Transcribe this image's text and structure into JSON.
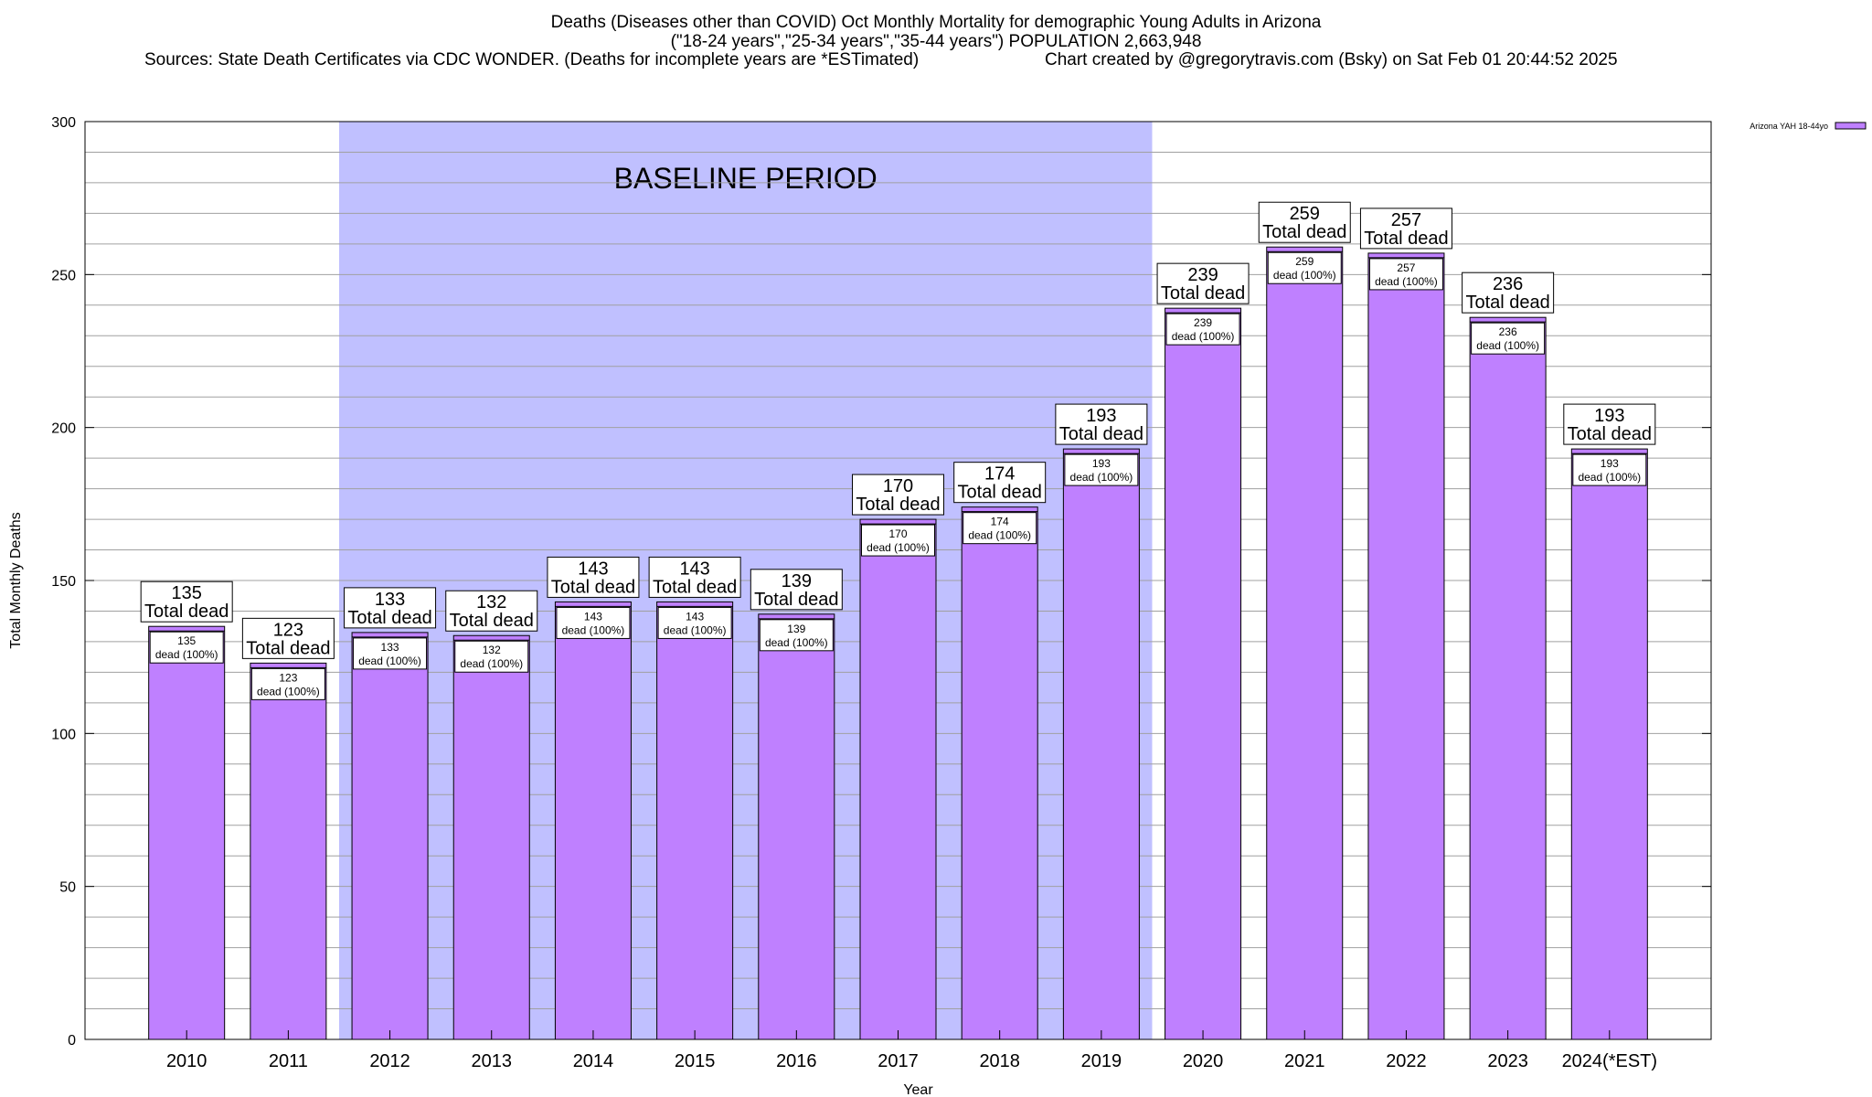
{
  "header": {
    "title_line1": "Deaths (Diseases other than COVID) Oct Monthly Mortality for demographic Young Adults in Arizona",
    "title_line2": "(\"18-24 years\",\"25-34 years\",\"35-44 years\") POPULATION 2,663,948",
    "sources": "Sources: State Death Certificates via CDC WONDER. (Deaths for incomplete years are *ESTimated)",
    "credit": "Chart created by @gregorytravis.com (Bsky) on Sat Feb 01 20:44:52 2025"
  },
  "chart_data": {
    "type": "bar",
    "title": "Deaths (Diseases other than COVID) Oct Monthly Mortality for demographic Young Adults in Arizona",
    "xlabel": "Year",
    "ylabel": "Total Monthly Deaths",
    "ylim": [
      0,
      300
    ],
    "yticks": [
      0,
      50,
      100,
      150,
      200,
      250,
      300
    ],
    "grid": true,
    "legend_position": "top-right",
    "categories": [
      "2010",
      "2011",
      "2012",
      "2013",
      "2014",
      "2015",
      "2016",
      "2017",
      "2018",
      "2019",
      "2020",
      "2021",
      "2022",
      "2023",
      "2024(*EST)"
    ],
    "series": [
      {
        "name": "Arizona YAH 18-44yo",
        "color": "#bf80ff",
        "values": [
          135,
          123,
          133,
          132,
          143,
          143,
          139,
          170,
          174,
          193,
          239,
          259,
          257,
          236,
          193
        ]
      }
    ],
    "total_label_suffix": "Total dead",
    "inner_label_suffix": "dead (100%)",
    "baseline": {
      "label": "BASELINE PERIOD",
      "start": "2012",
      "end": "2019",
      "color": "#c0c0ff"
    }
  }
}
